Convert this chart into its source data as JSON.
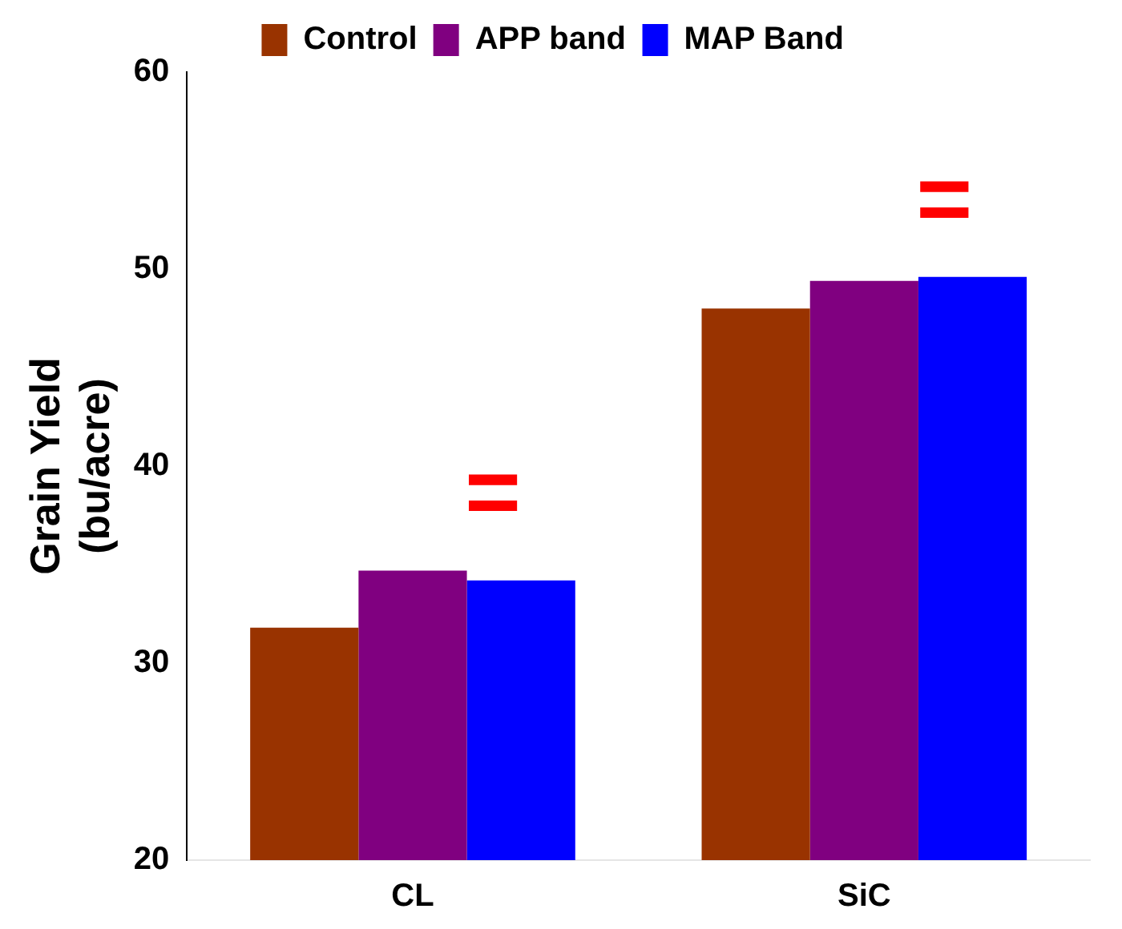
{
  "chart_data": {
    "type": "bar",
    "ylabel": "Grain Yield\n(bu/acre)",
    "categories": [
      "CL",
      "SiC"
    ],
    "series": [
      {
        "name": "Control",
        "color": "#993300",
        "values": [
          31.8,
          48.0
        ]
      },
      {
        "name": "APP band",
        "color": "#800080",
        "values": [
          34.7,
          49.4
        ]
      },
      {
        "name": "MAP Band",
        "color": "#0000ff",
        "values": [
          34.2,
          49.6
        ]
      }
    ],
    "ylim": [
      20,
      60
    ],
    "yticks": [
      20,
      30,
      40,
      50,
      60
    ],
    "grid": false,
    "legend": "top",
    "annotations": [
      "=",
      "="
    ]
  }
}
